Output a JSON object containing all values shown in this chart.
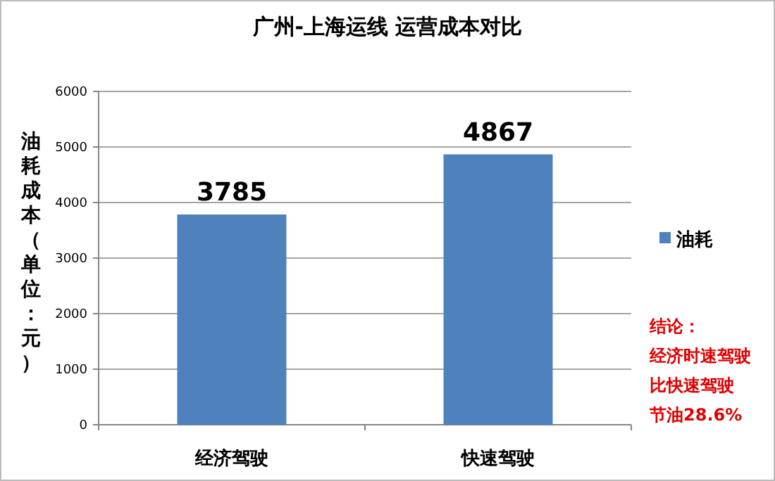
{
  "chart_data": {
    "type": "bar",
    "title": "广州-上海运线 运营成本对比",
    "ylabel": "油耗成本（单位：元）",
    "categories": [
      "经济驾驶",
      "快速驾驶"
    ],
    "series": [
      {
        "name": "油耗",
        "color": "#4f81bd",
        "values": [
          3785,
          4867
        ]
      }
    ],
    "ylim": [
      0,
      6000
    ],
    "yticks": [
      0,
      1000,
      2000,
      3000,
      4000,
      5000,
      6000
    ],
    "grid": "y",
    "legend": "right",
    "data_labels": true,
    "annotations": [
      "结论：",
      "经济时速驾驶",
      "比快速驾驶",
      "节油28.6%"
    ]
  }
}
